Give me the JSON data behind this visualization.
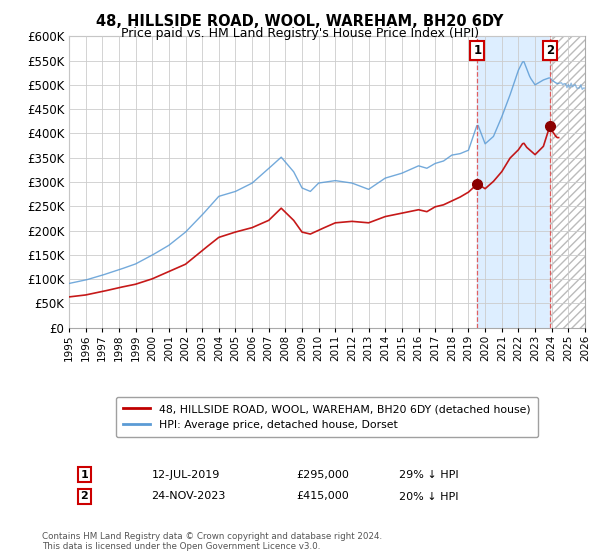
{
  "title": "48, HILLSIDE ROAD, WOOL, WAREHAM, BH20 6DY",
  "subtitle": "Price paid vs. HM Land Registry's House Price Index (HPI)",
  "legend_line1": "48, HILLSIDE ROAD, WOOL, WAREHAM, BH20 6DY (detached house)",
  "legend_line2": "HPI: Average price, detached house, Dorset",
  "annotation1_date": "12-JUL-2019",
  "annotation1_price": "£295,000",
  "annotation1_hpi": "29% ↓ HPI",
  "annotation1_year": 2019.54,
  "annotation2_date": "24-NOV-2023",
  "annotation2_price": "£415,000",
  "annotation2_hpi": "20% ↓ HPI",
  "annotation2_year": 2023.9,
  "sale1_value": 295000,
  "sale2_value": 415000,
  "footer": "Contains HM Land Registry data © Crown copyright and database right 2024.\nThis data is licensed under the Open Government Licence v3.0.",
  "hpi_color": "#5b9bd5",
  "price_color": "#c00000",
  "marker_color": "#8b0000",
  "highlight_color": "#ddeeff",
  "hatch_color": "#cccccc",
  "xlim_left": 1995,
  "xlim_right": 2026,
  "ylim_bottom": 0,
  "ylim_top": 600000,
  "ytick_step": 50000
}
